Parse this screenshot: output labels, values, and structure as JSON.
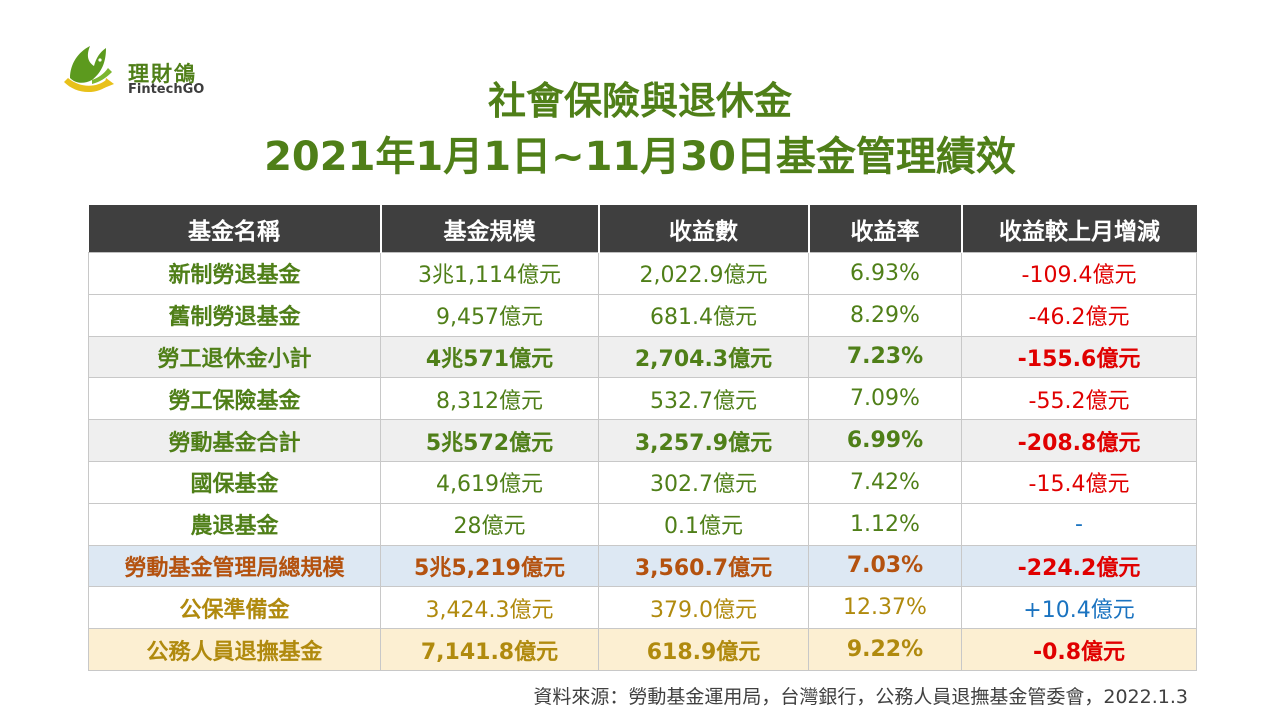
{
  "logo": {
    "name": "理財鴿",
    "sub": "FintechGO"
  },
  "title": {
    "line1": "社會保險與退休金",
    "line2": "2021年1月1日~11月30日基金管理績效"
  },
  "table": {
    "headers": [
      "基金名稱",
      "基金規模",
      "收益數",
      "收益率",
      "收益較上月增減"
    ],
    "rows": [
      [
        "新制勞退基金",
        "3兆1,114億元",
        "2,022.9億元",
        "6.93%",
        "-109.4億元"
      ],
      [
        "舊制勞退基金",
        "9,457億元",
        "681.4億元",
        "8.29%",
        "-46.2億元"
      ],
      [
        "勞工退休金小計",
        "4兆571億元",
        "2,704.3億元",
        "7.23%",
        "-155.6億元"
      ],
      [
        "勞工保險基金",
        "8,312億元",
        "532.7億元",
        "7.09%",
        "-55.2億元"
      ],
      [
        "勞動基金合計",
        "5兆572億元",
        "3,257.9億元",
        "6.99%",
        "-208.8億元"
      ],
      [
        "國保基金",
        "4,619億元",
        "302.7億元",
        "7.42%",
        "-15.4億元"
      ],
      [
        "農退基金",
        "28億元",
        "0.1億元",
        "1.12%",
        "-"
      ],
      [
        "勞動基金管理局總規模",
        "5兆5,219億元",
        "3,560.7億元",
        "7.03%",
        "-224.2億元"
      ],
      [
        "公保準備金",
        "3,424.3億元",
        "379.0億元",
        "12.37%",
        "+10.4億元"
      ],
      [
        "公務人員退撫基金",
        "7,141.8億元",
        "618.9億元",
        "9.22%",
        "-0.8億元"
      ]
    ]
  },
  "source": "資料來源：勞動基金運用局，台灣銀行，公務人員退撫基金管委會，2022.1.3",
  "colors": {
    "title_green": "#4f7f18",
    "header_bg": "#3f3f3f",
    "negative": "#e00000",
    "positive": "#1a73c0"
  }
}
